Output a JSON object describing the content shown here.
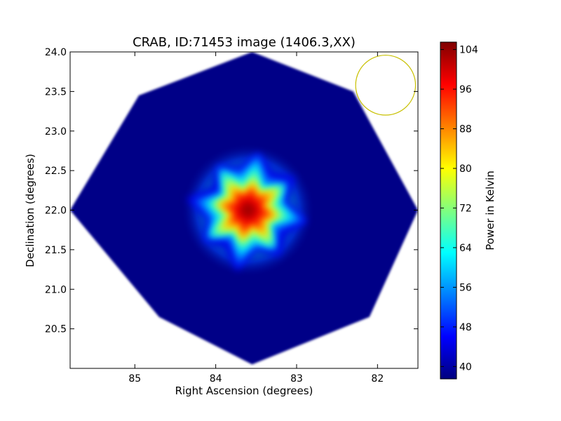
{
  "chart_data": {
    "type": "heatmap",
    "title": "CRAB, ID:71453 image (1406.3,XX)",
    "xlabel": "Right Ascension (degrees)",
    "ylabel": "Declination (degrees)",
    "xlim": [
      85.8,
      81.5
    ],
    "ylim": [
      20.0,
      24.0
    ],
    "x_ticks": [
      85,
      84,
      83,
      82
    ],
    "x_tick_labels": [
      "85",
      "84",
      "83",
      "82"
    ],
    "y_ticks": [
      20.5,
      21.0,
      21.5,
      22.0,
      22.5,
      23.0,
      23.5,
      24.0
    ],
    "y_tick_labels": [
      "20.5",
      "21.0",
      "21.5",
      "22.0",
      "22.5",
      "23.0",
      "23.5",
      "24.0"
    ],
    "colorbar": {
      "label": "Power in Kelvin",
      "min": 37.5,
      "max": 105.5,
      "ticks": [
        40,
        48,
        56,
        64,
        72,
        80,
        88,
        96,
        104
      ],
      "tick_labels": [
        "40",
        "48",
        "56",
        "64",
        "72",
        "80",
        "88",
        "96",
        "104"
      ],
      "colormap": "jet"
    },
    "field_of_view": {
      "shape": "octagon",
      "vertices": [
        [
          83.55,
          24.0
        ],
        [
          82.3,
          23.5
        ],
        [
          81.5,
          22.0
        ],
        [
          82.1,
          20.65
        ],
        [
          83.55,
          20.05
        ],
        [
          84.7,
          20.65
        ],
        [
          85.8,
          22.0
        ],
        [
          84.95,
          23.45
        ]
      ],
      "background_level": 38
    },
    "source": {
      "name": "CRAB",
      "ra": 83.6,
      "dec": 22.0,
      "peak": 105,
      "arms": 8
    },
    "beam": {
      "ra": 81.9,
      "dec": 23.58,
      "radius_deg": 0.37,
      "color": "#c8c000"
    }
  }
}
